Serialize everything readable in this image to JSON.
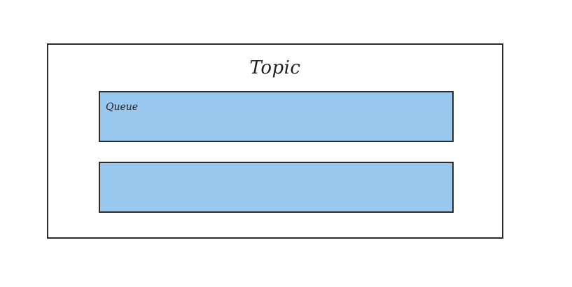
{
  "diagram": {
    "topic": {
      "title": "Topic"
    },
    "queues": [
      {
        "label": "Queue"
      },
      {
        "label": ""
      }
    ]
  },
  "colors": {
    "border": "#2b2b2b",
    "queue_fill": "#99c8ee",
    "background": "#ffffff"
  }
}
